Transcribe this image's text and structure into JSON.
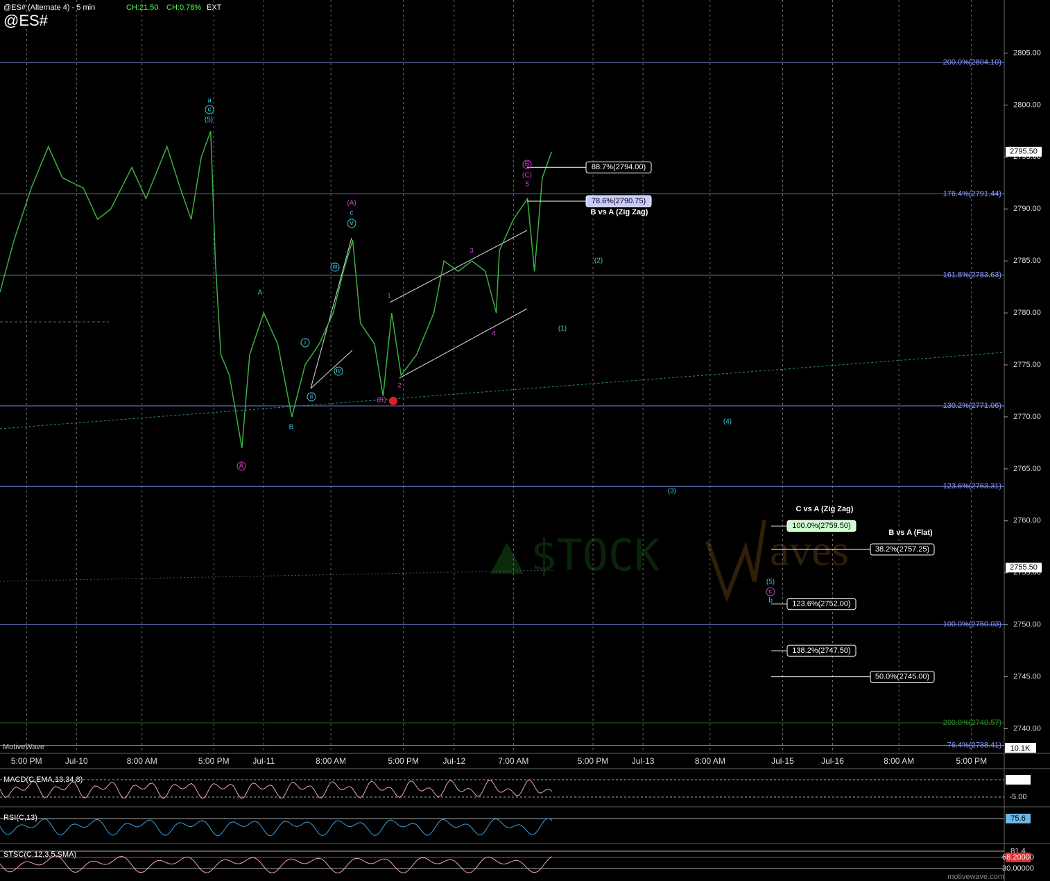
{
  "chart_data": {
    "type": "line",
    "title": "@ES# (Alternate 4)  - 5 min",
    "symbol": "@ES#",
    "change": "CH:21.50",
    "change_pct": "CH:0.78%",
    "session": "EXT",
    "watermark": "MotiveWave",
    "site": "motivewave.com",
    "x": [
      -9.8,
      -8.0,
      -5.8,
      -3.6,
      -1.8,
      0.9,
      2.7,
      4.4,
      7.1,
      8.9,
      11.6,
      13.3,
      14.7,
      16.0,
      17.2,
      17.8,
      18.5,
      19.6,
      21.2,
      22.2,
      24.0,
      25.8,
      27.6,
      29.3,
      31.1,
      32.9,
      34.2,
      35.4,
      36.4,
      38.2,
      39.3,
      40.4,
      41.6,
      43.6,
      45.8,
      47.1,
      48.9,
      50.7,
      52.4,
      53.8,
      54.2,
      56.0,
      57.8,
      58.7,
      59.7,
      60.9
    ],
    "series": [
      {
        "name": "@ES#",
        "color": "#3cb043",
        "values": [
          2782,
          2787,
          2792,
          2796,
          2793,
          2792,
          2789,
          2790,
          2794,
          2791,
          2796,
          2792,
          2789,
          2795,
          2797.5,
          2785,
          2776,
          2774,
          2767,
          2776,
          2780,
          2777,
          2770,
          2775,
          2777,
          2780,
          2784,
          2787,
          2779,
          2777,
          2772,
          2780,
          2774,
          2776,
          2780,
          2785,
          2784,
          2785,
          2784,
          2780,
          2786,
          2789,
          2791,
          2784,
          2793,
          2795.5
        ]
      }
    ],
    "xlim": [
      -9.8,
      118.9
    ],
    "xticks": [
      {
        "value": -6.4,
        "label": "5:00 PM"
      },
      {
        "value": 0,
        "label": "Jul-10"
      },
      {
        "value": 8.4,
        "label": "8:00 AM"
      },
      {
        "value": 17.6,
        "label": "5:00 PM"
      },
      {
        "value": 24,
        "label": "Jul-11"
      },
      {
        "value": 32.6,
        "label": "8:00 AM"
      },
      {
        "value": 41.9,
        "label": "5:00 PM"
      },
      {
        "value": 48.4,
        "label": "Jul-12"
      },
      {
        "value": 56,
        "label": "7:00 AM"
      },
      {
        "value": 66.2,
        "label": "5:00 PM"
      },
      {
        "value": 72.6,
        "label": "Jul-13"
      },
      {
        "value": 81.2,
        "label": "8:00 AM"
      },
      {
        "value": 90.5,
        "label": "Jul-15"
      },
      {
        "value": 96.9,
        "label": "Jul-16"
      },
      {
        "value": 105.4,
        "label": "8:00 AM"
      },
      {
        "value": 114.7,
        "label": "5:00 PM"
      }
    ],
    "ylim": [
      2737.7,
      2810.1
    ],
    "yticks": [
      {
        "value": 2740,
        "label": "2740.00"
      },
      {
        "value": 2745,
        "label": "2745.00"
      },
      {
        "value": 2750,
        "label": "2750.00"
      },
      {
        "value": 2755,
        "label": "2755.00"
      },
      {
        "value": 2760,
        "label": "2760.00"
      },
      {
        "value": 2765,
        "label": "2765.00"
      },
      {
        "value": 2770,
        "label": "2770.00"
      },
      {
        "value": 2775,
        "label": "2775.00"
      },
      {
        "value": 2780,
        "label": "2780.00"
      },
      {
        "value": 2785,
        "label": "2785.00"
      },
      {
        "value": 2790,
        "label": "2790.00"
      },
      {
        "value": 2795,
        "label": "2795.00"
      },
      {
        "value": 2800,
        "label": "2800.00"
      },
      {
        "value": 2805,
        "label": "2805.00"
      }
    ],
    "price_badges": [
      {
        "value": 2795.5,
        "label": "2795.50"
      },
      {
        "value": 2755.5,
        "label": "2755.50"
      }
    ],
    "levels": [
      {
        "value": 2804.1,
        "label": "200.0%(2804.10)",
        "color": "#8c9cff"
      },
      {
        "value": 2791.44,
        "label": "176.4%(2791.44)",
        "color": "#8c9cff"
      },
      {
        "value": 2783.63,
        "label": "161.8%(2783.63)",
        "color": "#8c9cff"
      },
      {
        "value": 2771.06,
        "label": "130.2%(2771.06)",
        "color": "#8c9cff"
      },
      {
        "value": 2763.31,
        "label": "123.6%(2763.31)",
        "color": "#8c9cff"
      },
      {
        "value": 2750.03,
        "label": "100.0%(2750.03)",
        "color": "#8c9cff"
      },
      {
        "value": 2740.57,
        "label": "200.0%(2740.57)",
        "color": "#2e8b2e"
      },
      {
        "value": 2738.41,
        "label": "76.4%(2738.41)",
        "color": "#8c9cff"
      }
    ],
    "targets": [
      {
        "value": 2794.0,
        "label": "88.7%(2794.00)"
      },
      {
        "value": 2790.75,
        "label": "78.6%(2790.75)"
      },
      {
        "value": 2759.5,
        "label": "100.0%(2759.50)"
      },
      {
        "value": 2757.25,
        "label": "38.2%(2757.25)"
      },
      {
        "value": 2752.0,
        "label": "123.6%(2752.00)"
      },
      {
        "value": 2747.5,
        "label": "138.2%(2747.50)"
      },
      {
        "value": 2745.0,
        "label": "50.0%(2745.00)"
      }
    ],
    "annotations": [
      "B vs A (Zig Zag)",
      "C vs A (Zig Zag)",
      "B vs A (Flat)"
    ],
    "wave_labels": [
      "a",
      "c",
      "(5)",
      "A",
      "B",
      "A",
      "(A)",
      "c",
      "v",
      "iii",
      "i",
      "ii",
      "iv",
      "1",
      "2",
      "3",
      "4",
      "(B)",
      "B",
      "(C)",
      "5",
      "(2)",
      "(1)",
      "(4)",
      "(3)",
      "(5)",
      "c",
      "b"
    ],
    "volume_label": "10.1K",
    "indicators": [
      {
        "name": "MACD(C,EMA,13,34,8)",
        "labels": [
          "1.11",
          "-5.00"
        ]
      },
      {
        "name": "RSI(C,13)",
        "labels": [
          "75.6"
        ]
      },
      {
        "name": "STSC(C,12,3,5,SMA)",
        "labels": [
          "81.4",
          "68.20000",
          "30.00000"
        ]
      }
    ]
  }
}
